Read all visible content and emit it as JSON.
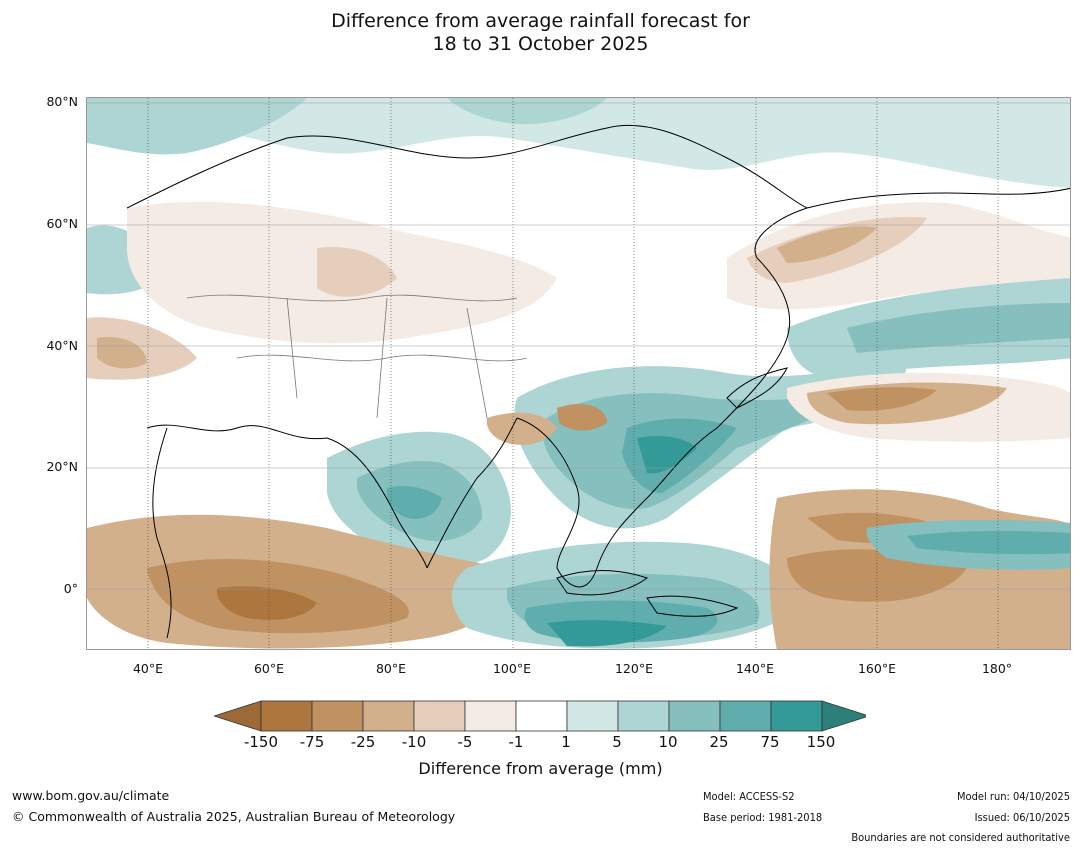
{
  "title": {
    "line1": "Difference from average rainfall forecast for",
    "line2": "18 to 31 October 2025"
  },
  "map": {
    "lat_labels": [
      "80°N",
      "60°N",
      "40°N",
      "20°N",
      "0°"
    ],
    "lon_labels": [
      "40°E",
      "60°E",
      "80°E",
      "100°E",
      "120°E",
      "140°E",
      "160°E",
      "180°"
    ]
  },
  "colorbar": {
    "labels": [
      "-150",
      "-75",
      "-25",
      "-10",
      "-5",
      "-1",
      "1",
      "5",
      "10",
      "25",
      "75",
      "150"
    ],
    "colors": [
      "#9c6a38",
      "#ac763e",
      "#c09262",
      "#d3b08c",
      "#e5cfbc",
      "#f4ebe4",
      "#ffffff",
      "#d2e8e6",
      "#acd5d4",
      "#85c0bf",
      "#5fadad",
      "#339a98",
      "#2d7f7c"
    ],
    "title": "Difference from average (mm)"
  },
  "footer": {
    "website": "www.bom.gov.au/climate",
    "copyright": "© Commonwealth of Australia 2025, Australian Bureau of Meteorology",
    "model": "Model: ACCESS-S2",
    "base_period": "Base period: 1981-2018",
    "model_run": "Model run: 04/10/2025",
    "issued": "Issued: 06/10/2025",
    "disclaimer": "Boundaries are not considered authoritative"
  }
}
